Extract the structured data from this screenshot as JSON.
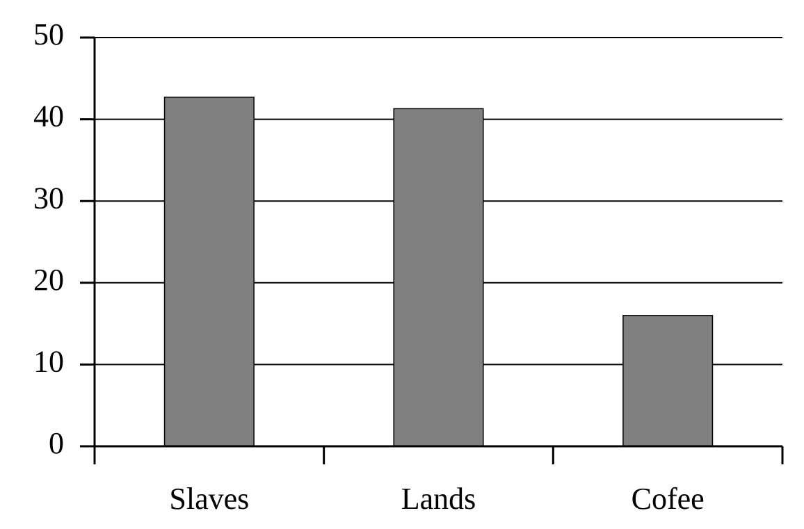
{
  "chart_data": {
    "type": "bar",
    "categories": [
      "Slaves",
      "Lands",
      "Cofee"
    ],
    "values": [
      42.7,
      41.3,
      16.0
    ],
    "color": "#808080",
    "ylim": [
      0,
      50
    ],
    "yticks": [
      0,
      10,
      20,
      30,
      40,
      50
    ],
    "grid": true
  }
}
